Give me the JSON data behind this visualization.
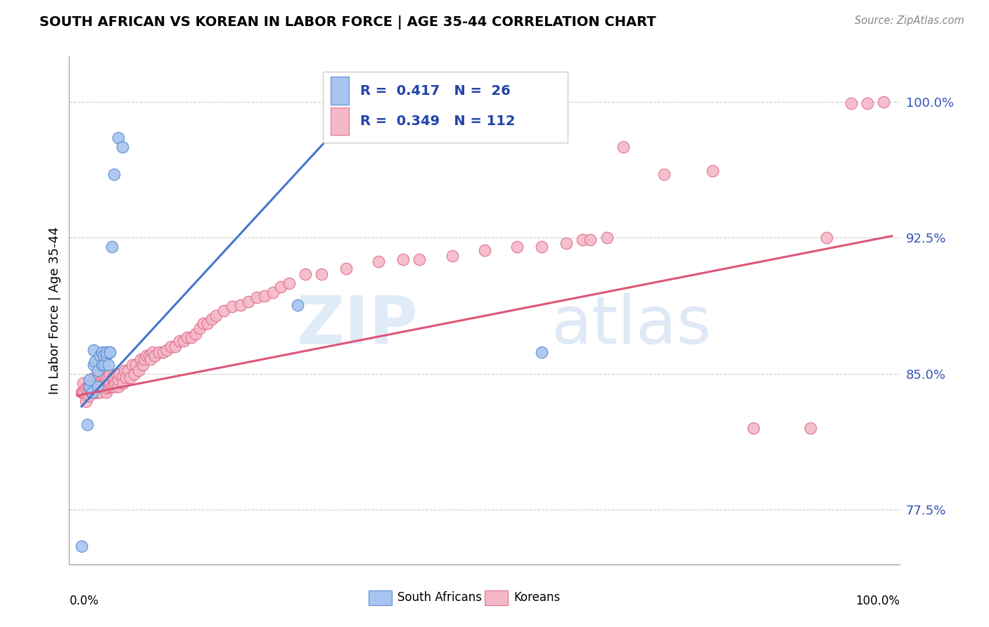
{
  "title": "SOUTH AFRICAN VS KOREAN IN LABOR FORCE | AGE 35-44 CORRELATION CHART",
  "source": "Source: ZipAtlas.com",
  "ylabel": "In Labor Force | Age 35-44",
  "ytick_labels": [
    "77.5%",
    "85.0%",
    "92.5%",
    "100.0%"
  ],
  "ytick_values": [
    0.775,
    0.85,
    0.925,
    1.0
  ],
  "xmin": 0.0,
  "xmax": 1.0,
  "ymin": 0.745,
  "ymax": 1.025,
  "blue_color": "#A8C4F0",
  "pink_color": "#F5B8C8",
  "blue_edge_color": "#5B8FD0",
  "pink_edge_color": "#E07090",
  "blue_line_color": "#4477CC",
  "pink_line_color": "#DD5577",
  "legend_blue_text": "R =  0.417   N =  26",
  "legend_pink_text": "R =  0.349   N = 112",
  "watermark": "ZIPatlas",
  "sa_x": [
    0.005,
    0.012,
    0.015,
    0.015,
    0.018,
    0.02,
    0.02,
    0.022,
    0.025,
    0.025,
    0.028,
    0.03,
    0.03,
    0.032,
    0.033,
    0.035,
    0.035,
    0.038,
    0.04,
    0.04,
    0.042,
    0.045,
    0.05,
    0.055,
    0.27,
    0.57
  ],
  "sa_y": [
    0.755,
    0.822,
    0.843,
    0.847,
    0.84,
    0.855,
    0.863,
    0.857,
    0.843,
    0.852,
    0.86,
    0.855,
    0.862,
    0.86,
    0.855,
    0.86,
    0.862,
    0.855,
    0.862,
    0.862,
    0.92,
    0.96,
    0.98,
    0.975,
    0.888,
    0.862
  ],
  "k_x": [
    0.005,
    0.006,
    0.007,
    0.008,
    0.01,
    0.01,
    0.012,
    0.013,
    0.014,
    0.015,
    0.015,
    0.016,
    0.017,
    0.018,
    0.018,
    0.02,
    0.02,
    0.022,
    0.022,
    0.024,
    0.025,
    0.025,
    0.026,
    0.027,
    0.028,
    0.028,
    0.03,
    0.03,
    0.032,
    0.033,
    0.034,
    0.035,
    0.035,
    0.036,
    0.038,
    0.038,
    0.04,
    0.04,
    0.042,
    0.043,
    0.045,
    0.045,
    0.047,
    0.048,
    0.05,
    0.05,
    0.052,
    0.055,
    0.056,
    0.058,
    0.06,
    0.062,
    0.065,
    0.067,
    0.07,
    0.072,
    0.075,
    0.078,
    0.08,
    0.082,
    0.085,
    0.088,
    0.09,
    0.092,
    0.095,
    0.1,
    0.105,
    0.11,
    0.115,
    0.12,
    0.125,
    0.13,
    0.135,
    0.14,
    0.145,
    0.15,
    0.155,
    0.16,
    0.165,
    0.17,
    0.18,
    0.19,
    0.2,
    0.21,
    0.22,
    0.23,
    0.24,
    0.25,
    0.26,
    0.28,
    0.3,
    0.33,
    0.37,
    0.4,
    0.42,
    0.46,
    0.5,
    0.54,
    0.57,
    0.6,
    0.62,
    0.63,
    0.65,
    0.67,
    0.72,
    0.78,
    0.83,
    0.9,
    0.92,
    0.95,
    0.97,
    0.99
  ],
  "k_y": [
    0.84,
    0.84,
    0.845,
    0.84,
    0.835,
    0.842,
    0.838,
    0.843,
    0.84,
    0.838,
    0.845,
    0.842,
    0.84,
    0.845,
    0.84,
    0.843,
    0.848,
    0.842,
    0.847,
    0.84,
    0.845,
    0.84,
    0.848,
    0.843,
    0.84,
    0.845,
    0.843,
    0.847,
    0.842,
    0.848,
    0.845,
    0.84,
    0.848,
    0.842,
    0.848,
    0.843,
    0.845,
    0.85,
    0.843,
    0.848,
    0.843,
    0.848,
    0.845,
    0.85,
    0.843,
    0.847,
    0.85,
    0.848,
    0.845,
    0.852,
    0.848,
    0.852,
    0.848,
    0.855,
    0.85,
    0.855,
    0.852,
    0.858,
    0.855,
    0.858,
    0.86,
    0.86,
    0.858,
    0.862,
    0.86,
    0.862,
    0.862,
    0.863,
    0.865,
    0.865,
    0.868,
    0.868,
    0.87,
    0.87,
    0.872,
    0.875,
    0.878,
    0.878,
    0.88,
    0.882,
    0.885,
    0.887,
    0.888,
    0.89,
    0.892,
    0.893,
    0.895,
    0.898,
    0.9,
    0.905,
    0.905,
    0.908,
    0.912,
    0.913,
    0.913,
    0.915,
    0.918,
    0.92,
    0.92,
    0.922,
    0.924,
    0.924,
    0.925,
    0.975,
    0.96,
    0.962,
    0.82,
    0.82,
    0.925,
    0.999,
    0.999,
    1.0
  ],
  "blue_trend_x": [
    0.005,
    0.38
  ],
  "blue_trend_y": [
    0.832,
    1.015
  ],
  "pink_trend_x": [
    0.0,
    1.0
  ],
  "pink_trend_y": [
    0.838,
    0.926
  ]
}
